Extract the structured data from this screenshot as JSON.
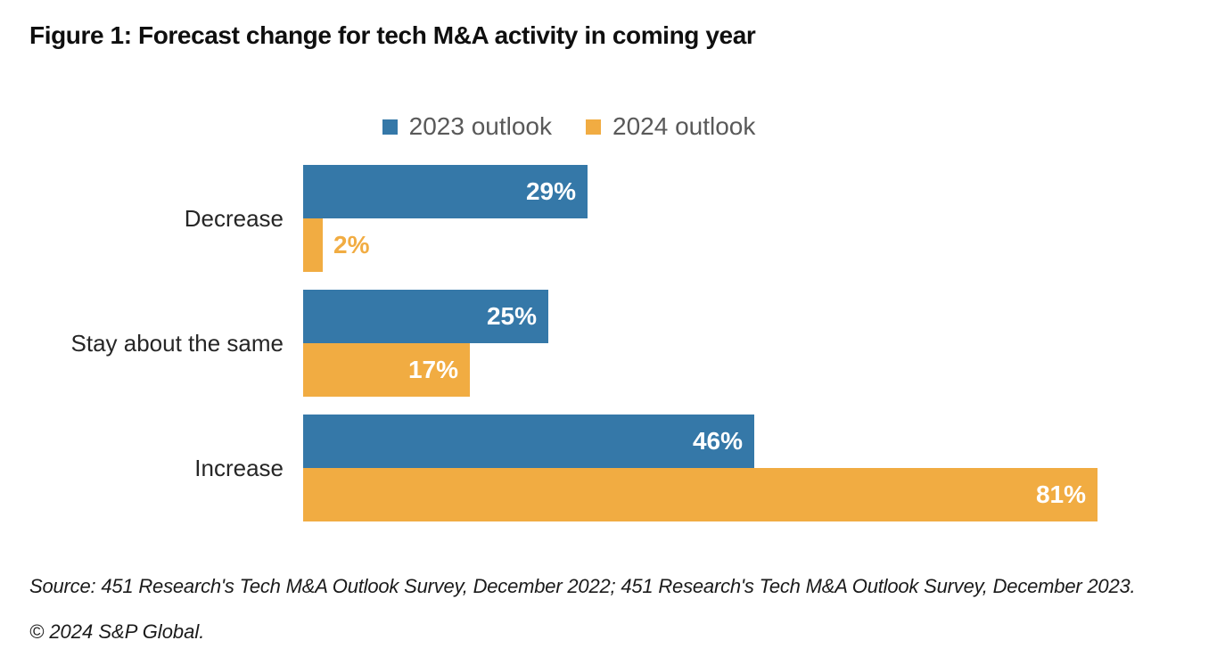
{
  "title": "Figure 1: Forecast change for tech M&A activity in coming year",
  "chart_data": {
    "type": "bar",
    "orientation": "horizontal",
    "title": "Figure 1: Forecast change for tech M&A activity in coming year",
    "categories": [
      "Decrease",
      "Stay about the same",
      "Increase"
    ],
    "series": [
      {
        "name": "2023 outlook",
        "color": "#3578A8",
        "values": [
          29,
          25,
          46
        ],
        "value_labels": [
          "29%",
          "25%",
          "46%"
        ]
      },
      {
        "name": "2024 outlook",
        "color": "#F1AC42",
        "values": [
          2,
          17,
          81
        ],
        "value_labels": [
          "2%",
          "17%",
          "81%"
        ]
      }
    ],
    "value_unit": "%",
    "xlim": [
      0,
      100
    ],
    "legend_position": "top-center",
    "grid": false,
    "axes_visible": false,
    "value_label_inside_color": "#FFFFFF"
  },
  "footer": {
    "source": "Source: 451 Research's Tech M&A Outlook Survey, December 2022; 451 Research's Tech M&A Outlook Survey, December 2023.",
    "copyright": "© 2024 S&P Global."
  },
  "colors": {
    "background": "#FFFFFF",
    "title_text": "#0F0F0F",
    "legend_text": "#595959",
    "category_text": "#262626",
    "footer_text": "#1A1A1A"
  }
}
